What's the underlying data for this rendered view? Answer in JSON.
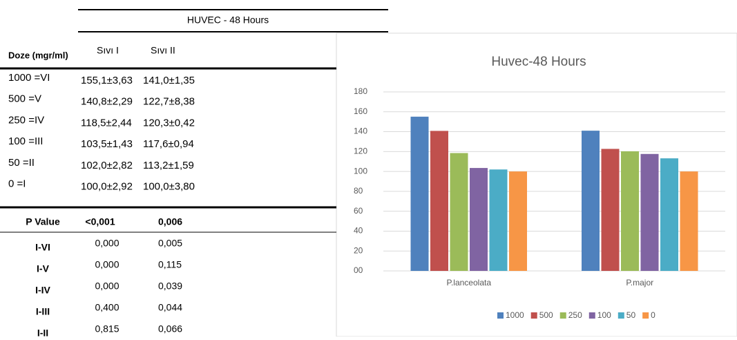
{
  "table": {
    "title": "HUVEC - 48 Hours",
    "header": [
      "Doze (mgr/ml)",
      "Sıvı I",
      "Sıvı II"
    ],
    "rows": [
      [
        "1000 =VI",
        "155,1±3,63",
        "141,0±1,35"
      ],
      [
        "500 =V",
        "140,8±2,29",
        "122,7±8,38"
      ],
      [
        "250 =IV",
        "118,5±2,44",
        "120,3±0,42"
      ],
      [
        "100 =III",
        "103,5±1,43",
        "117,6±0,94"
      ],
      [
        "50 =II",
        "102,0±2,82",
        "113,2±1,59"
      ],
      [
        "0 =I",
        "100,0±2,92",
        "100,0±3,80"
      ]
    ],
    "p_header": [
      "P Value",
      "<0,001",
      "0,006"
    ],
    "p_rows": [
      [
        "I-VI",
        "0,000",
        "0,005"
      ],
      [
        "I-V",
        "0,000",
        "0,115"
      ],
      [
        "I-IV",
        "0,000",
        "0,039"
      ],
      [
        "I-III",
        "0,400",
        "0,044"
      ],
      [
        "I-II",
        "0,815",
        "0,066"
      ]
    ]
  },
  "chart_data": {
    "type": "bar",
    "title": "Huvec-48 Hours",
    "categories": [
      "P.lanceolata",
      "P.major"
    ],
    "series": [
      {
        "name": "1000",
        "color": "#4f81bd",
        "values": [
          155.1,
          141.0
        ]
      },
      {
        "name": "500",
        "color": "#c0504d",
        "values": [
          140.8,
          122.7
        ]
      },
      {
        "name": "250",
        "color": "#9bbb59",
        "values": [
          118.5,
          120.3
        ]
      },
      {
        "name": "100",
        "color": "#8064a2",
        "values": [
          103.5,
          117.6
        ]
      },
      {
        "name": "50",
        "color": "#4bacc6",
        "values": [
          102.0,
          113.2
        ]
      },
      {
        "name": "0",
        "color": "#f79646",
        "values": [
          100.0,
          100.0
        ]
      }
    ],
    "ylim": [
      0,
      180
    ],
    "yticks": [
      {
        "value": 0,
        "label": "00"
      },
      20,
      40,
      60,
      80,
      100,
      120,
      140,
      160,
      180
    ],
    "grid": true,
    "legend": "bottom"
  }
}
